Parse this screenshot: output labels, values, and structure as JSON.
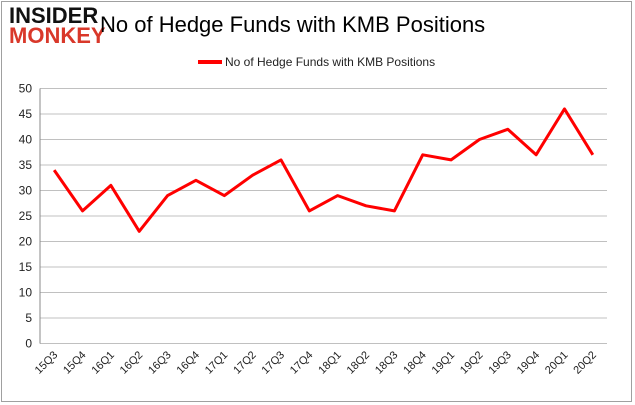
{
  "logo": {
    "line1": "INSIDER",
    "line2": "MONKEY"
  },
  "chart_data": {
    "type": "line",
    "title": "No of Hedge Funds with KMB Positions",
    "categories": [
      "15Q3",
      "15Q4",
      "16Q1",
      "16Q2",
      "16Q3",
      "16Q4",
      "17Q1",
      "17Q2",
      "17Q3",
      "17Q4",
      "18Q1",
      "18Q2",
      "18Q3",
      "18Q4",
      "19Q1",
      "19Q2",
      "19Q3",
      "19Q4",
      "20Q1",
      "20Q2"
    ],
    "series": [
      {
        "name": "No of Hedge Funds with KMB Positions",
        "color": "#ff0000",
        "values": [
          34,
          26,
          31,
          22,
          29,
          32,
          29,
          33,
          36,
          26,
          29,
          27,
          26,
          37,
          36,
          40,
          42,
          37,
          46,
          37
        ]
      }
    ],
    "ylim": [
      0,
      50
    ],
    "yticks": [
      0,
      5,
      10,
      15,
      20,
      25,
      30,
      35,
      40,
      45,
      50
    ],
    "grid": true,
    "legend": "top"
  }
}
